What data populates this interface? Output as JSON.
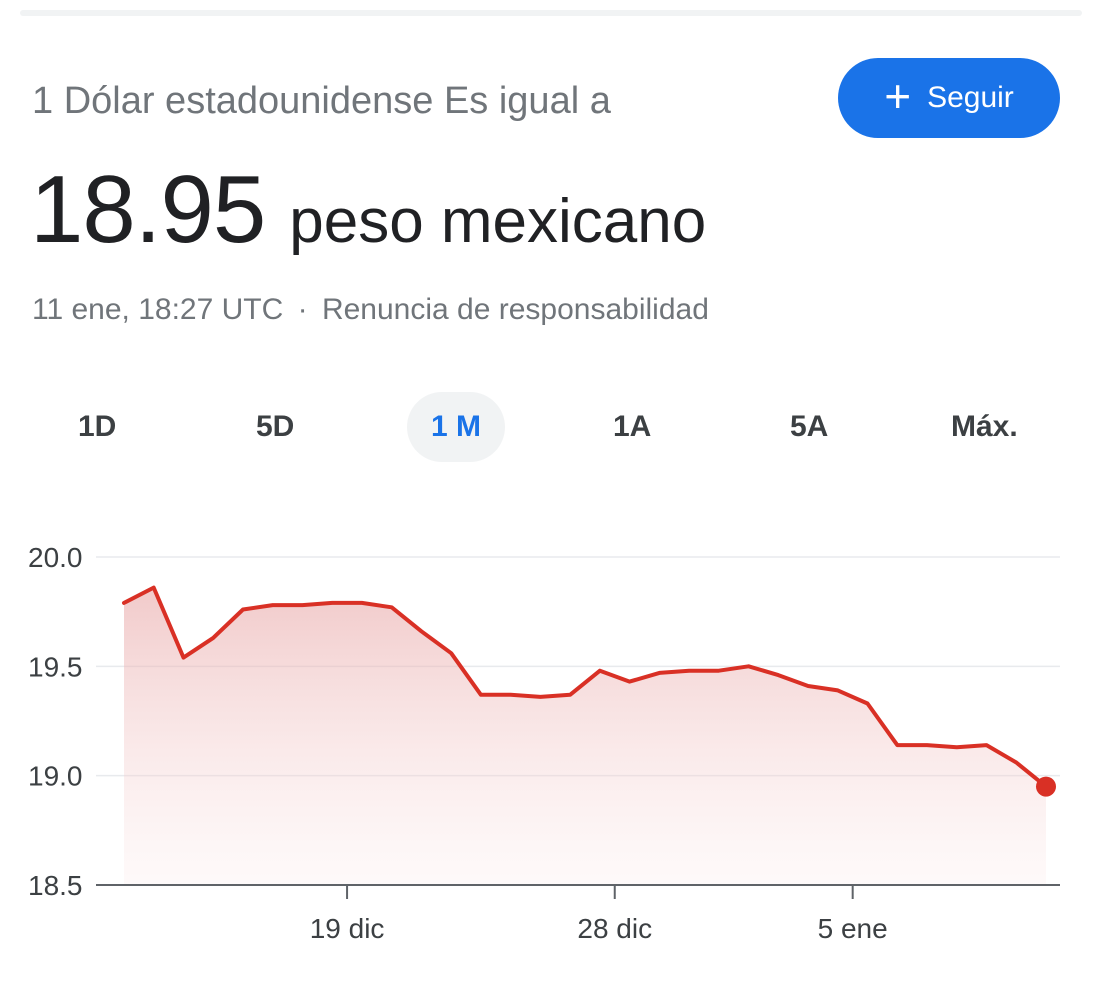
{
  "header": {
    "subtitle": "1 Dólar estadounidense Es igual a",
    "follow_label": "Seguir",
    "follow_icon": "plus-icon"
  },
  "quote": {
    "value": "18.95",
    "currency": "peso mexicano"
  },
  "meta": {
    "timestamp": "11 ene, 18:27 UTC",
    "separator": "·",
    "disclaimer": "Renuncia de responsabilidad"
  },
  "tabs": [
    {
      "label": "1D"
    },
    {
      "label": "5D"
    },
    {
      "label": "1 M",
      "active": true
    },
    {
      "label": "1A"
    },
    {
      "label": "5A"
    },
    {
      "label": "Máx."
    }
  ],
  "colors": {
    "line": "#d93025",
    "accent": "#1a73e8"
  },
  "chart_data": {
    "type": "area",
    "ylim": [
      18.5,
      20.0
    ],
    "yticks": [
      {
        "value": 20.0,
        "label": "20.0"
      },
      {
        "value": 19.5,
        "label": "19.5"
      },
      {
        "value": 19.0,
        "label": "19.0"
      },
      {
        "value": 18.5,
        "label": "18.5"
      }
    ],
    "xticks": [
      {
        "index": 7.5,
        "label": "19 dic"
      },
      {
        "index": 16.5,
        "label": "28 dic"
      },
      {
        "index": 24.5,
        "label": "5 ene"
      }
    ],
    "grid": true,
    "series": [
      {
        "values": [
          19.79,
          19.86,
          19.54,
          19.63,
          19.76,
          19.78,
          19.78,
          19.79,
          19.79,
          19.77,
          19.66,
          19.56,
          19.37,
          19.37,
          19.36,
          19.37,
          19.48,
          19.43,
          19.47,
          19.48,
          19.48,
          19.5,
          19.46,
          19.41,
          19.39,
          19.33,
          19.14,
          19.14,
          19.13,
          19.14,
          19.06,
          18.95
        ]
      }
    ]
  }
}
